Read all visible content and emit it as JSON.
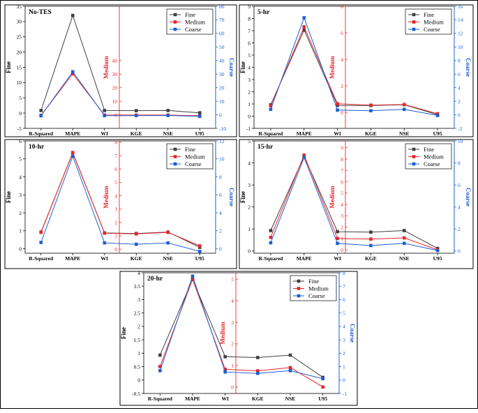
{
  "chart_data": [
    {
      "type": "line",
      "title": "No-TES",
      "categories": [
        "R-Squared",
        "MAPE",
        "WI",
        "KGE",
        "NSE",
        "U95"
      ],
      "axes": {
        "left": {
          "label": "Fine",
          "ylim": [
            -5,
            35
          ],
          "ticks": [
            -5,
            0,
            5,
            10,
            15,
            20,
            25,
            30,
            35
          ],
          "color": "#000000"
        },
        "middle": {
          "label": "Medium",
          "ylim": [
            -10,
            80
          ],
          "ticks": [
            0,
            10,
            20,
            30,
            40
          ],
          "color": "#e8262b"
        },
        "right": {
          "label": "Coarse",
          "ylim": [
            -10,
            80
          ],
          "ticks": [
            -10,
            0,
            10,
            20,
            30,
            40,
            50,
            60,
            70,
            80
          ],
          "color": "#1c5fd0"
        }
      },
      "series": [
        {
          "name": "Fine",
          "axis": "left",
          "color": "#404040",
          "values": [
            0.85,
            32,
            0.85,
            0.8,
            0.85,
            0.1
          ]
        },
        {
          "name": "Medium",
          "axis": "middle",
          "color": "#e8262b",
          "values": [
            -0.4,
            30.2,
            -0.1,
            -0.2,
            -0.2,
            -0.7
          ]
        },
        {
          "name": "Coarse",
          "axis": "right",
          "color": "#1c5fd0",
          "values": [
            -0.7,
            31.7,
            -0.6,
            -0.6,
            -0.5,
            -1.1
          ]
        }
      ],
      "legend": "top-right"
    },
    {
      "type": "line",
      "title": "5-hr",
      "categories": [
        "R-Squared",
        "MAPE",
        "WI",
        "KGE",
        "NSE",
        "U95"
      ],
      "axes": {
        "left": {
          "label": "Fine",
          "ylim": [
            -1,
            9
          ],
          "ticks": [
            -1,
            0,
            1,
            2,
            3,
            4,
            5,
            6,
            7,
            8,
            9
          ],
          "color": "#000000"
        },
        "middle": {
          "label": "Medium",
          "ylim": [
            -1.2,
            8
          ],
          "ticks": [
            0,
            2,
            4,
            6,
            8
          ],
          "color": "#e8262b"
        },
        "right": {
          "label": "Coarse",
          "ylim": [
            -2,
            16
          ],
          "ticks": [
            -2,
            0,
            2,
            4,
            6,
            8,
            10,
            12,
            14,
            16
          ],
          "color": "#1c5fd0"
        }
      },
      "series": [
        {
          "name": "Fine",
          "axis": "left",
          "color": "#404040",
          "values": [
            0.93,
            7.05,
            0.88,
            0.87,
            0.94,
            0.12
          ]
        },
        {
          "name": "Medium",
          "axis": "middle",
          "color": "#e8262b",
          "values": [
            0.5,
            6.45,
            0.65,
            0.55,
            0.6,
            -0.1
          ]
        },
        {
          "name": "Coarse",
          "axis": "right",
          "color": "#1c5fd0",
          "values": [
            0.8,
            14.3,
            0.7,
            0.6,
            0.8,
            -0.1
          ]
        }
      ],
      "legend": "top-right"
    },
    {
      "type": "line",
      "title": "10-hr",
      "categories": [
        "R-Squared",
        "MAPE",
        "WI",
        "KGE",
        "NSE",
        "U95"
      ],
      "axes": {
        "left": {
          "label": "Fine",
          "ylim": [
            -0.25,
            6
          ],
          "ticks": [
            0,
            1,
            2,
            3,
            4,
            5,
            6
          ],
          "color": "#000000"
        },
        "middle": {
          "label": "Medium",
          "ylim": [
            -0.3,
            8.1
          ],
          "ticks": [
            0,
            1,
            2,
            3,
            4,
            5,
            6,
            7,
            8
          ],
          "color": "#e8262b"
        },
        "right": {
          "label": "Coarse",
          "ylim": [
            -0.5,
            12
          ],
          "ticks": [
            0,
            2,
            4,
            6,
            8,
            10,
            12
          ],
          "color": "#1c5fd0"
        }
      },
      "series": [
        {
          "name": "Fine",
          "axis": "left",
          "color": "#404040",
          "values": [
            0.93,
            5.35,
            0.88,
            0.85,
            0.93,
            0.08
          ]
        },
        {
          "name": "Medium",
          "axis": "middle",
          "color": "#e8262b",
          "values": [
            1.26,
            7.23,
            1.2,
            1.15,
            1.26,
            0.25
          ]
        },
        {
          "name": "Coarse",
          "axis": "right",
          "color": "#1c5fd0",
          "values": [
            0.7,
            10.3,
            0.65,
            0.5,
            0.65,
            -0.3
          ]
        }
      ],
      "legend": "top-right"
    },
    {
      "type": "line",
      "title": "15-hr",
      "categories": [
        "R-Squared",
        "MAPE",
        "WI",
        "KGE",
        "NSE",
        "U95"
      ],
      "axes": {
        "left": {
          "label": "Fine",
          "ylim": [
            -0.1,
            5
          ],
          "ticks": [
            0,
            1,
            2,
            3,
            4,
            5
          ],
          "color": "#000000"
        },
        "middle": {
          "label": "Medium",
          "ylim": [
            -0.3,
            9.6
          ],
          "ticks": [
            0,
            1,
            2,
            3,
            4,
            5,
            6,
            7,
            8,
            9
          ],
          "color": "#e8262b"
        },
        "right": {
          "label": "Coarse",
          "ylim": [
            -0.2,
            10
          ],
          "ticks": [
            0,
            2,
            4,
            6,
            8,
            10
          ],
          "color": "#1c5fd0"
        }
      },
      "series": [
        {
          "name": "Fine",
          "axis": "left",
          "color": "#404040",
          "values": [
            0.93,
            4.3,
            0.88,
            0.86,
            0.93,
            0.12
          ]
        },
        {
          "name": "Medium",
          "axis": "middle",
          "color": "#e8262b",
          "values": [
            1.1,
            8.35,
            1.0,
            0.95,
            1.05,
            0.0
          ]
        },
        {
          "name": "Coarse",
          "axis": "right",
          "color": "#1c5fd0",
          "values": [
            0.75,
            8.5,
            0.7,
            0.5,
            0.7,
            0.05
          ]
        }
      ],
      "legend": "top-right"
    },
    {
      "type": "line",
      "title": "20-hr",
      "categories": [
        "R-Squared",
        "MAPE",
        "WI",
        "KGE",
        "NSE",
        "U95"
      ],
      "axes": {
        "left": {
          "label": "Fine",
          "ylim": [
            -0.5,
            4
          ],
          "ticks": [
            -0.5,
            0.0,
            0.5,
            1.0,
            1.5,
            2.0,
            2.5,
            3.0,
            3.5,
            4.0
          ],
          "color": "#000000"
        },
        "middle": {
          "label": "Medium",
          "ylim": [
            -0.3,
            5.3
          ],
          "ticks": [
            0,
            1,
            2,
            3,
            4,
            5
          ],
          "color": "#e8262b"
        },
        "right": {
          "label": "Coarse",
          "ylim": [
            -1,
            8
          ],
          "ticks": [
            -1,
            0,
            1,
            2,
            3,
            4,
            5,
            6,
            7,
            8
          ],
          "color": "#1c5fd0"
        }
      },
      "series": [
        {
          "name": "Fine",
          "axis": "left",
          "color": "#404040",
          "values": [
            0.93,
            3.75,
            0.87,
            0.84,
            0.93,
            0.1
          ]
        },
        {
          "name": "Medium",
          "axis": "middle",
          "color": "#e8262b",
          "values": [
            0.95,
            5.0,
            0.82,
            0.75,
            0.9,
            0.0
          ]
        },
        {
          "name": "Coarse",
          "axis": "right",
          "color": "#1c5fd0",
          "values": [
            0.7,
            7.75,
            0.6,
            0.5,
            0.7,
            0.1
          ]
        }
      ],
      "legend": "top-right"
    }
  ]
}
